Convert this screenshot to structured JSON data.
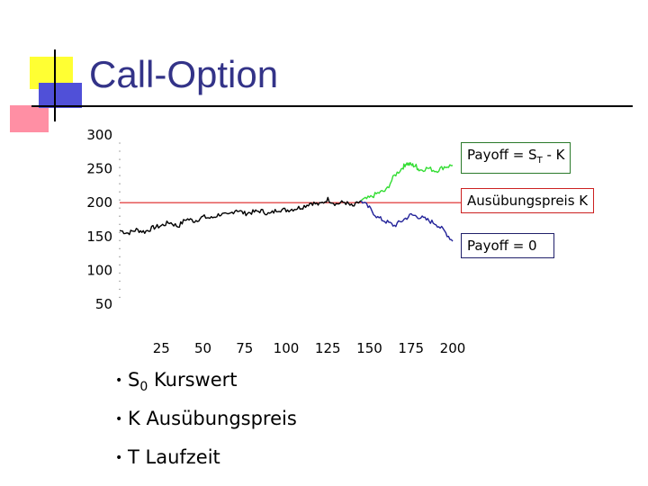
{
  "title": "Call-Option",
  "colors": {
    "title": "#333388",
    "path": "#000000",
    "path_above": "#33dd33",
    "path_below": "#222299",
    "strike": "#dd2222"
  },
  "chart_data": {
    "type": "line",
    "title": "",
    "xlabel": "",
    "ylabel": "",
    "xlim": [
      0,
      210
    ],
    "ylim": [
      50,
      300
    ],
    "x_ticks": [
      "25",
      "50",
      "75",
      "100",
      "125",
      "150",
      "175",
      "200"
    ],
    "y_ticks": [
      "300",
      "250",
      "200",
      "150",
      "100",
      "50"
    ],
    "series": [
      {
        "name": "",
        "color": "#000000",
        "x": [
          0,
          5,
          10,
          15,
          20,
          25,
          30,
          35,
          40,
          45,
          50,
          55,
          60,
          65,
          70,
          75,
          80,
          85,
          90,
          95,
          100,
          105,
          110,
          115,
          120,
          125,
          130,
          135,
          140,
          145
        ],
        "y": [
          159,
          155,
          160,
          157,
          163,
          166,
          171,
          165,
          176,
          173,
          179,
          177,
          183,
          181,
          190,
          184,
          186,
          188,
          183,
          190,
          189,
          191,
          194,
          200,
          197,
          205,
          198,
          201,
          194,
          203
        ]
      },
      {
        "name": "",
        "color": "#33dd33",
        "x": [
          145,
          150,
          155,
          160,
          165,
          170,
          172,
          175,
          178,
          180,
          185,
          190,
          195,
          200
        ],
        "y": [
          203,
          207,
          214,
          218,
          240,
          252,
          258,
          256,
          254,
          248,
          251,
          247,
          253,
          255
        ]
      },
      {
        "name": "",
        "color": "#222299",
        "x": [
          145,
          150,
          155,
          160,
          165,
          170,
          175,
          180,
          185,
          190,
          195,
          200
        ],
        "y": [
          203,
          192,
          178,
          172,
          166,
          174,
          182,
          179,
          174,
          169,
          158,
          143
        ]
      }
    ],
    "strike": 200,
    "annotations": [
      "Payoff = S_T - K",
      "Ausübungspreis K",
      "Payoff = 0"
    ]
  },
  "labels": {
    "payoff_st_prefix": "Payoff = S",
    "payoff_st_sub": "T",
    "payoff_st_suffix": " - K",
    "strike": "Ausübungspreis K",
    "payoff_zero": "Payoff = 0"
  },
  "bullets": [
    {
      "main": "S",
      "sub": "0",
      "rest": " Kurswert"
    },
    {
      "main": "K Ausübungspreis",
      "sub": "",
      "rest": ""
    },
    {
      "main": "T Laufzeit",
      "sub": "",
      "rest": ""
    }
  ]
}
